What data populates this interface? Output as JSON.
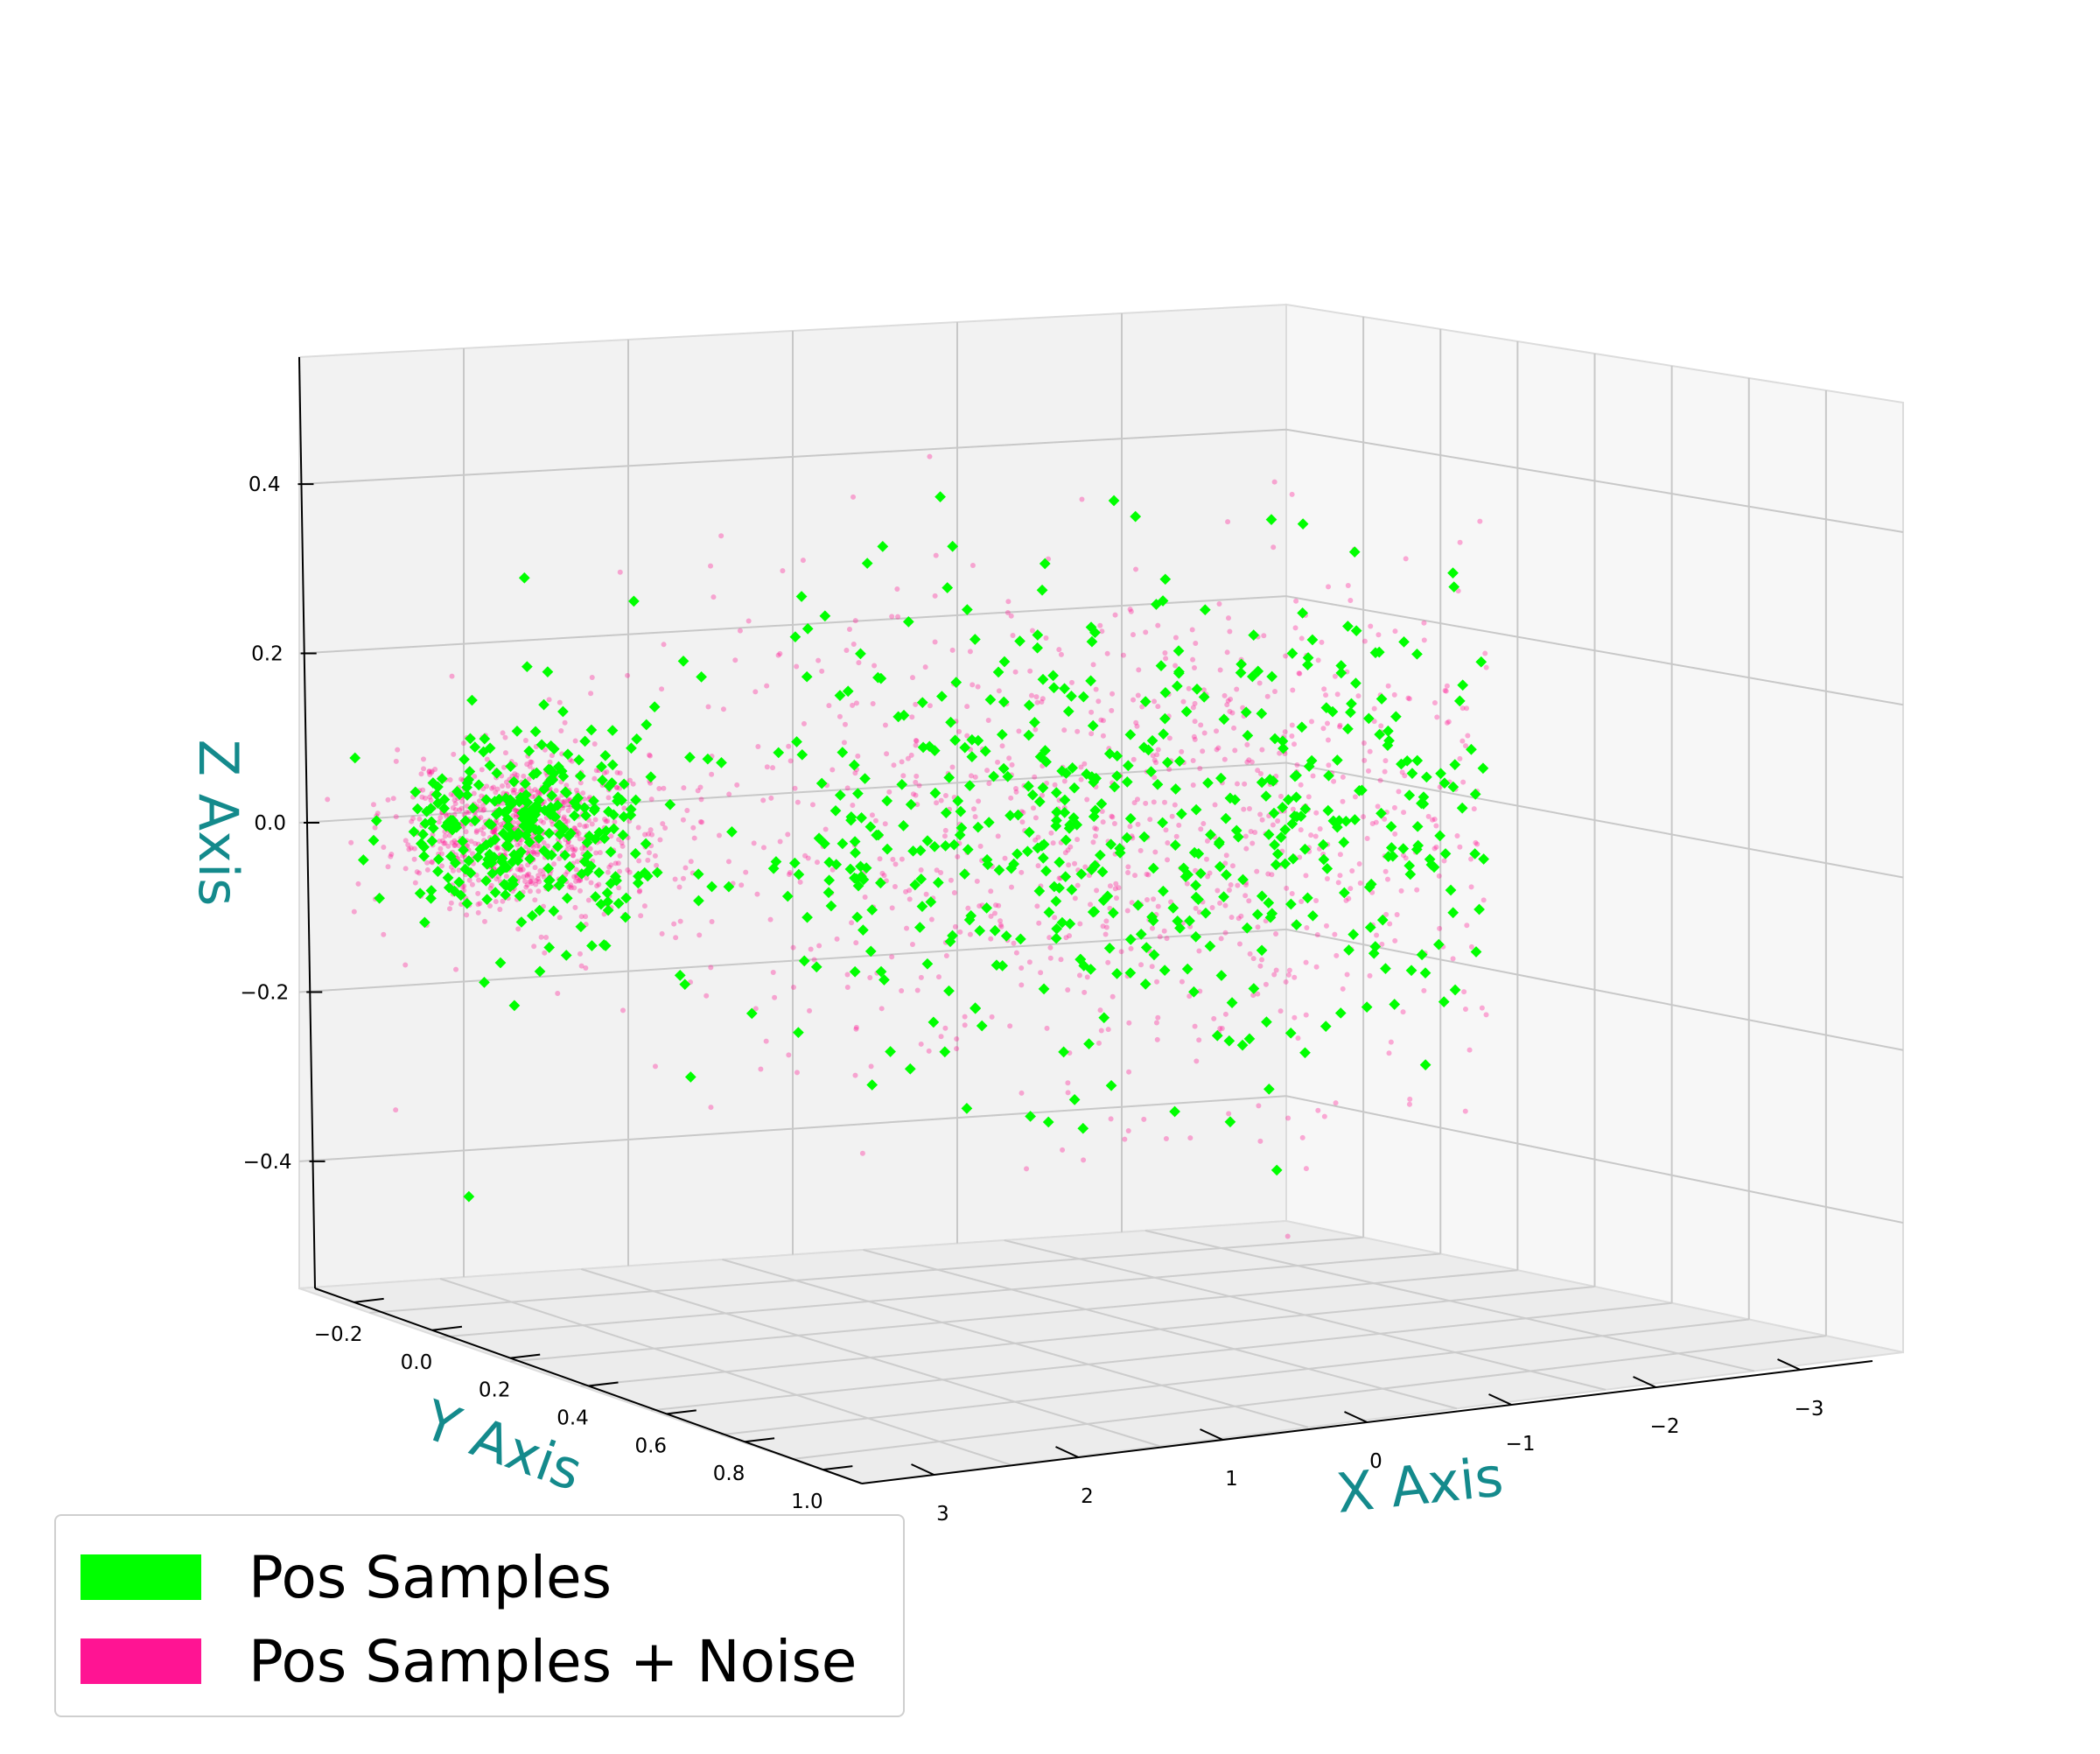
{
  "chart_data": {
    "type": "scatter",
    "projection": "3d",
    "xlabel": "X Axis",
    "ylabel": "Y Axis",
    "zlabel": "Z Axis",
    "label_color": "#148A8C",
    "x_ticks": [
      "3",
      "2",
      "1",
      "0",
      "−1",
      "−2",
      "−3"
    ],
    "y_ticks": [
      "−0.2",
      "0.0",
      "0.2",
      "0.4",
      "0.6",
      "0.8",
      "1.0"
    ],
    "z_ticks": [
      "0.4",
      "0.2",
      "0.0",
      "−0.2",
      "−0.4"
    ],
    "xlim": [
      -3.2,
      3.2
    ],
    "ylim": [
      -0.3,
      1.1
    ],
    "zlim": [
      -0.55,
      0.55
    ],
    "grid": true,
    "legend_position": "bottom-left",
    "series": [
      {
        "name": "Pos Samples",
        "color": "#00FF00",
        "marker": "diamond",
        "approx_count": 2500,
        "clusters": [
          {
            "x_center": 2.6,
            "z_center": 0.0,
            "x_spread": 0.25,
            "z_spread": 0.06,
            "weight": 0.25
          },
          {
            "x_center": 0.0,
            "z_center": 0.0,
            "x_spread": 1.1,
            "z_spread": 0.15,
            "weight": 0.55
          },
          {
            "x_center": -2.4,
            "z_center": 0.0,
            "x_spread": 0.2,
            "z_spread": 0.14,
            "weight": 0.2
          }
        ]
      },
      {
        "name": "Pos Samples +  Noise",
        "color": "#FF1493",
        "marker": "dot",
        "approx_count": 20000,
        "clusters": [
          {
            "x_center": 2.6,
            "z_center": 0.0,
            "x_spread": 0.25,
            "z_spread": 0.05,
            "weight": 0.3
          },
          {
            "x_center": 0.0,
            "z_center": 0.0,
            "x_spread": 1.1,
            "z_spread": 0.16,
            "weight": 0.4
          },
          {
            "x_center": -2.4,
            "z_center": 0.0,
            "x_spread": 0.18,
            "z_spread": 0.12,
            "weight": 0.3
          }
        ]
      }
    ]
  },
  "legend": {
    "items": [
      {
        "label": "Pos Samples",
        "color": "#00FF00"
      },
      {
        "label": "Pos Samples +  Noise",
        "color": "#FF1493"
      }
    ]
  }
}
